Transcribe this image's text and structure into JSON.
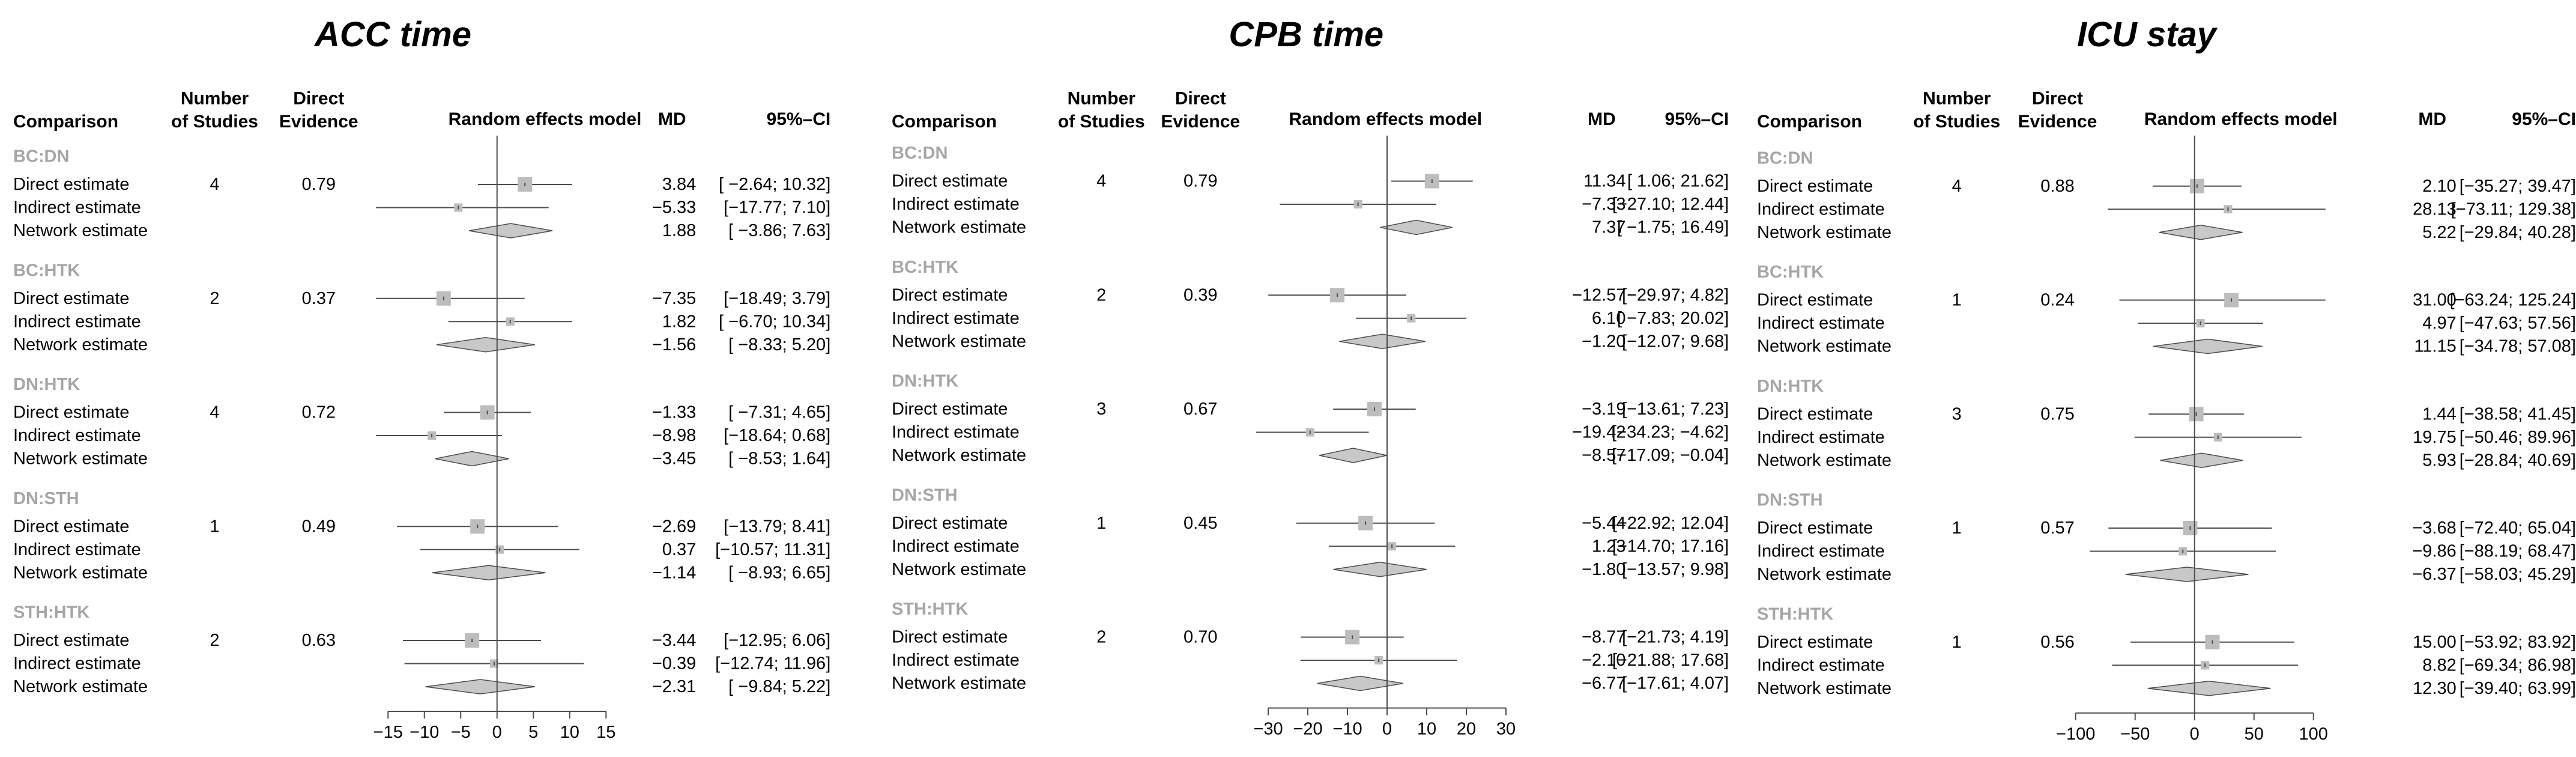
{
  "chart_data": [
    {
      "type": "forest",
      "title": "ACC time",
      "columns": {
        "comparison": "Comparison",
        "studies": "Number of Studies",
        "direct": "Direct Evidence",
        "model": "Random effects model",
        "md": "MD",
        "ci": "95%–CI"
      },
      "xlim": [
        -15,
        15
      ],
      "ticks": [
        -15,
        -10,
        -5,
        0,
        5,
        10,
        15
      ],
      "groups": [
        {
          "name": "BC:DN",
          "studies": "4",
          "direct": "0.79",
          "rows": [
            {
              "label": "Direct estimate",
              "md": 3.84,
              "lo": -2.64,
              "hi": 10.32,
              "md_text": "3.84",
              "ci_text": "[ −2.64; 10.32]"
            },
            {
              "label": "Indirect estimate",
              "md": -5.33,
              "lo": -17.77,
              "hi": 7.1,
              "md_text": "−5.33",
              "ci_text": "[−17.77; 7.10]"
            },
            {
              "label": "Network estimate",
              "md": 1.88,
              "lo": -3.86,
              "hi": 7.63,
              "md_text": "1.88",
              "ci_text": "[ −3.86; 7.63]"
            }
          ]
        },
        {
          "name": "BC:HTK",
          "studies": "2",
          "direct": "0.37",
          "rows": [
            {
              "label": "Direct estimate",
              "md": -7.35,
              "lo": -18.49,
              "hi": 3.79,
              "md_text": "−7.35",
              "ci_text": "[−18.49; 3.79]"
            },
            {
              "label": "Indirect estimate",
              "md": 1.82,
              "lo": -6.7,
              "hi": 10.34,
              "md_text": "1.82",
              "ci_text": "[ −6.70; 10.34]"
            },
            {
              "label": "Network estimate",
              "md": -1.56,
              "lo": -8.33,
              "hi": 5.2,
              "md_text": "−1.56",
              "ci_text": "[ −8.33; 5.20]"
            }
          ]
        },
        {
          "name": "DN:HTK",
          "studies": "4",
          "direct": "0.72",
          "rows": [
            {
              "label": "Direct estimate",
              "md": -1.33,
              "lo": -7.31,
              "hi": 4.65,
              "md_text": "−1.33",
              "ci_text": "[ −7.31; 4.65]"
            },
            {
              "label": "Indirect estimate",
              "md": -8.98,
              "lo": -18.64,
              "hi": 0.68,
              "md_text": "−8.98",
              "ci_text": "[−18.64; 0.68]"
            },
            {
              "label": "Network estimate",
              "md": -3.45,
              "lo": -8.53,
              "hi": 1.64,
              "md_text": "−3.45",
              "ci_text": "[ −8.53; 1.64]"
            }
          ]
        },
        {
          "name": "DN:STH",
          "studies": "1",
          "direct": "0.49",
          "rows": [
            {
              "label": "Direct estimate",
              "md": -2.69,
              "lo": -13.79,
              "hi": 8.41,
              "md_text": "−2.69",
              "ci_text": "[−13.79; 8.41]"
            },
            {
              "label": "Indirect estimate",
              "md": 0.37,
              "lo": -10.57,
              "hi": 11.31,
              "md_text": "0.37",
              "ci_text": "[−10.57; 11.31]"
            },
            {
              "label": "Network estimate",
              "md": -1.14,
              "lo": -8.93,
              "hi": 6.65,
              "md_text": "−1.14",
              "ci_text": "[ −8.93; 6.65]"
            }
          ]
        },
        {
          "name": "STH:HTK",
          "studies": "2",
          "direct": "0.63",
          "rows": [
            {
              "label": "Direct estimate",
              "md": -3.44,
              "lo": -12.95,
              "hi": 6.06,
              "md_text": "−3.44",
              "ci_text": "[−12.95; 6.06]"
            },
            {
              "label": "Indirect estimate",
              "md": -0.39,
              "lo": -12.74,
              "hi": 11.96,
              "md_text": "−0.39",
              "ci_text": "[−12.74; 11.96]"
            },
            {
              "label": "Network estimate",
              "md": -2.31,
              "lo": -9.84,
              "hi": 5.22,
              "md_text": "−2.31",
              "ci_text": "[ −9.84; 5.22]"
            }
          ]
        }
      ]
    },
    {
      "type": "forest",
      "title": "CPB time",
      "columns": {
        "comparison": "Comparison",
        "studies": "Number of Studies",
        "direct": "Direct Evidence",
        "model": "Random effects model",
        "md": "MD",
        "ci": "95%–CI"
      },
      "xlim": [
        -30,
        30
      ],
      "ticks": [
        -30,
        -20,
        -10,
        0,
        10,
        20,
        30
      ],
      "groups": [
        {
          "name": "BC:DN",
          "studies": "4",
          "direct": "0.79",
          "rows": [
            {
              "label": "Direct estimate",
              "md": 11.34,
              "lo": 1.06,
              "hi": 21.62,
              "md_text": "11.34",
              "ci_text": "[ 1.06; 21.62]"
            },
            {
              "label": "Indirect estimate",
              "md": -7.33,
              "lo": -27.1,
              "hi": 12.44,
              "md_text": "−7.33",
              "ci_text": "[−27.10; 12.44]"
            },
            {
              "label": "Network estimate",
              "md": 7.37,
              "lo": -1.75,
              "hi": 16.49,
              "md_text": "7.37",
              "ci_text": "[ −1.75; 16.49]"
            }
          ]
        },
        {
          "name": "BC:HTK",
          "studies": "2",
          "direct": "0.39",
          "rows": [
            {
              "label": "Direct estimate",
              "md": -12.57,
              "lo": -29.97,
              "hi": 4.82,
              "md_text": "−12.57",
              "ci_text": "[−29.97; 4.82]"
            },
            {
              "label": "Indirect estimate",
              "md": 6.1,
              "lo": -7.83,
              "hi": 20.02,
              "md_text": "6.10",
              "ci_text": "[ −7.83; 20.02]"
            },
            {
              "label": "Network estimate",
              "md": -1.2,
              "lo": -12.07,
              "hi": 9.68,
              "md_text": "−1.20",
              "ci_text": "[−12.07; 9.68]"
            }
          ]
        },
        {
          "name": "DN:HTK",
          "studies": "3",
          "direct": "0.67",
          "rows": [
            {
              "label": "Direct estimate",
              "md": -3.19,
              "lo": -13.61,
              "hi": 7.23,
              "md_text": "−3.19",
              "ci_text": "[−13.61; 7.23]"
            },
            {
              "label": "Indirect estimate",
              "md": -19.42,
              "lo": -34.23,
              "hi": -4.62,
              "md_text": "−19.42",
              "ci_text": "[−34.23; −4.62]"
            },
            {
              "label": "Network estimate",
              "md": -8.57,
              "lo": -17.09,
              "hi": -0.04,
              "md_text": "−8.57",
              "ci_text": "[−17.09; −0.04]"
            }
          ]
        },
        {
          "name": "DN:STH",
          "studies": "1",
          "direct": "0.45",
          "rows": [
            {
              "label": "Direct estimate",
              "md": -5.44,
              "lo": -22.92,
              "hi": 12.04,
              "md_text": "−5.44",
              "ci_text": "[−22.92; 12.04]"
            },
            {
              "label": "Indirect estimate",
              "md": 1.23,
              "lo": -14.7,
              "hi": 17.16,
              "md_text": "1.23",
              "ci_text": "[−14.70; 17.16]"
            },
            {
              "label": "Network estimate",
              "md": -1.8,
              "lo": -13.57,
              "hi": 9.98,
              "md_text": "−1.80",
              "ci_text": "[−13.57; 9.98]"
            }
          ]
        },
        {
          "name": "STH:HTK",
          "studies": "2",
          "direct": "0.70",
          "rows": [
            {
              "label": "Direct estimate",
              "md": -8.77,
              "lo": -21.73,
              "hi": 4.19,
              "md_text": "−8.77",
              "ci_text": "[−21.73; 4.19]"
            },
            {
              "label": "Indirect estimate",
              "md": -2.1,
              "lo": -21.88,
              "hi": 17.68,
              "md_text": "−2.10",
              "ci_text": "[−21.88; 17.68]"
            },
            {
              "label": "Network estimate",
              "md": -6.77,
              "lo": -17.61,
              "hi": 4.07,
              "md_text": "−6.77",
              "ci_text": "[−17.61; 4.07]"
            }
          ]
        }
      ]
    },
    {
      "type": "forest",
      "title": "ICU stay",
      "columns": {
        "comparison": "Comparison",
        "studies": "Number of Studies",
        "direct": "Direct Evidence",
        "model": "Random effects model",
        "md": "MD",
        "ci": "95%–CI"
      },
      "xlim": [
        -100,
        100
      ],
      "ticks": [
        -100,
        -50,
        0,
        50,
        100
      ],
      "groups": [
        {
          "name": "BC:DN",
          "studies": "4",
          "direct": "0.88",
          "rows": [
            {
              "label": "Direct estimate",
              "md": 2.1,
              "lo": -35.27,
              "hi": 39.47,
              "md_text": "2.10",
              "ci_text": "[−35.27; 39.47]"
            },
            {
              "label": "Indirect estimate",
              "md": 28.13,
              "lo": -73.11,
              "hi": 129.38,
              "md_text": "28.13",
              "ci_text": "[−73.11; 129.38]"
            },
            {
              "label": "Network estimate",
              "md": 5.22,
              "lo": -29.84,
              "hi": 40.28,
              "md_text": "5.22",
              "ci_text": "[−29.84; 40.28]"
            }
          ]
        },
        {
          "name": "BC:HTK",
          "studies": "1",
          "direct": "0.24",
          "rows": [
            {
              "label": "Direct estimate",
              "md": 31.0,
              "lo": -63.24,
              "hi": 125.24,
              "md_text": "31.00",
              "ci_text": "[−63.24; 125.24]"
            },
            {
              "label": "Indirect estimate",
              "md": 4.97,
              "lo": -47.63,
              "hi": 57.56,
              "md_text": "4.97",
              "ci_text": "[−47.63; 57.56]"
            },
            {
              "label": "Network estimate",
              "md": 11.15,
              "lo": -34.78,
              "hi": 57.08,
              "md_text": "11.15",
              "ci_text": "[−34.78; 57.08]"
            }
          ]
        },
        {
          "name": "DN:HTK",
          "studies": "3",
          "direct": "0.75",
          "rows": [
            {
              "label": "Direct estimate",
              "md": 1.44,
              "lo": -38.58,
              "hi": 41.45,
              "md_text": "1.44",
              "ci_text": "[−38.58; 41.45]"
            },
            {
              "label": "Indirect estimate",
              "md": 19.75,
              "lo": -50.46,
              "hi": 89.96,
              "md_text": "19.75",
              "ci_text": "[−50.46; 89.96]"
            },
            {
              "label": "Network estimate",
              "md": 5.93,
              "lo": -28.84,
              "hi": 40.69,
              "md_text": "5.93",
              "ci_text": "[−28.84; 40.69]"
            }
          ]
        },
        {
          "name": "DN:STH",
          "studies": "1",
          "direct": "0.57",
          "rows": [
            {
              "label": "Direct estimate",
              "md": -3.68,
              "lo": -72.4,
              "hi": 65.04,
              "md_text": "−3.68",
              "ci_text": "[−72.40; 65.04]"
            },
            {
              "label": "Indirect estimate",
              "md": -9.86,
              "lo": -88.19,
              "hi": 68.47,
              "md_text": "−9.86",
              "ci_text": "[−88.19; 68.47]"
            },
            {
              "label": "Network estimate",
              "md": -6.37,
              "lo": -58.03,
              "hi": 45.29,
              "md_text": "−6.37",
              "ci_text": "[−58.03; 45.29]"
            }
          ]
        },
        {
          "name": "STH:HTK",
          "studies": "1",
          "direct": "0.56",
          "rows": [
            {
              "label": "Direct estimate",
              "md": 15.0,
              "lo": -53.92,
              "hi": 83.92,
              "md_text": "15.00",
              "ci_text": "[−53.92; 83.92]"
            },
            {
              "label": "Indirect estimate",
              "md": 8.82,
              "lo": -69.34,
              "hi": 86.98,
              "md_text": "8.82",
              "ci_text": "[−69.34; 86.98]"
            },
            {
              "label": "Network estimate",
              "md": 12.3,
              "lo": -39.4,
              "hi": 63.99,
              "md_text": "12.30",
              "ci_text": "[−39.40; 63.99]"
            }
          ]
        }
      ]
    }
  ],
  "colors": {
    "text": "#000000",
    "group_label": "#a6a6a6",
    "square": "#bdbdbd",
    "diamond": "#c8c8c8",
    "line": "#4d4d4d"
  }
}
